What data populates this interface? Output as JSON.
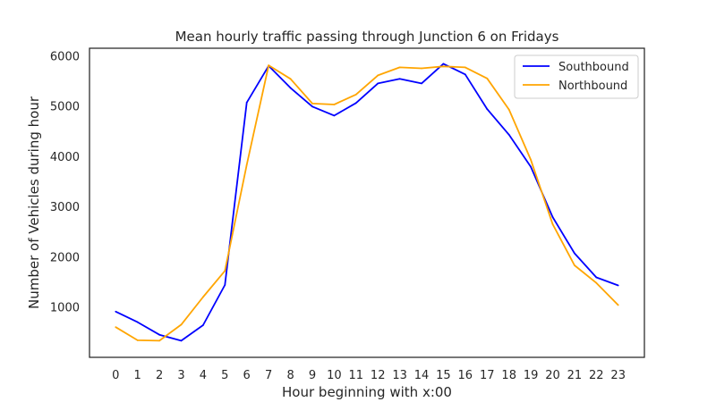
{
  "chart_data": {
    "type": "line",
    "title": "Mean hourly traffic passing through Junction 6 on Fridays",
    "xlabel": "Hour beginning with x:00",
    "ylabel": "Number of Vehicles during hour",
    "x": [
      0,
      1,
      2,
      3,
      4,
      5,
      6,
      7,
      8,
      9,
      10,
      11,
      12,
      13,
      14,
      15,
      16,
      17,
      18,
      19,
      20,
      21,
      22,
      23
    ],
    "x_ticks": [
      "0",
      "1",
      "2",
      "3",
      "4",
      "5",
      "6",
      "7",
      "8",
      "9",
      "10",
      "11",
      "12",
      "13",
      "14",
      "15",
      "16",
      "17",
      "18",
      "19",
      "20",
      "21",
      "22",
      "23"
    ],
    "xlim": [
      -1.2,
      24.2
    ],
    "ylim": [
      0,
      6150
    ],
    "y_ticks": [
      1000,
      2000,
      3000,
      4000,
      5000,
      6000
    ],
    "y_tick_labels": [
      "1000",
      "2000",
      "3000",
      "4000",
      "5000",
      "6000"
    ],
    "grid": false,
    "legend_position": "top-right",
    "series": [
      {
        "name": "Southbound",
        "color": "#0000ff",
        "values": [
          910,
          700,
          450,
          330,
          640,
          1440,
          5070,
          5800,
          5360,
          4990,
          4810,
          5060,
          5450,
          5540,
          5450,
          5840,
          5630,
          4940,
          4430,
          3790,
          2790,
          2070,
          1590,
          1430
        ]
      },
      {
        "name": "Northbound",
        "color": "#ffa500",
        "values": [
          600,
          340,
          330,
          650,
          1200,
          1720,
          3830,
          5810,
          5540,
          5050,
          5030,
          5230,
          5610,
          5770,
          5750,
          5790,
          5770,
          5550,
          4930,
          3930,
          2650,
          1830,
          1480,
          1040
        ]
      }
    ]
  }
}
